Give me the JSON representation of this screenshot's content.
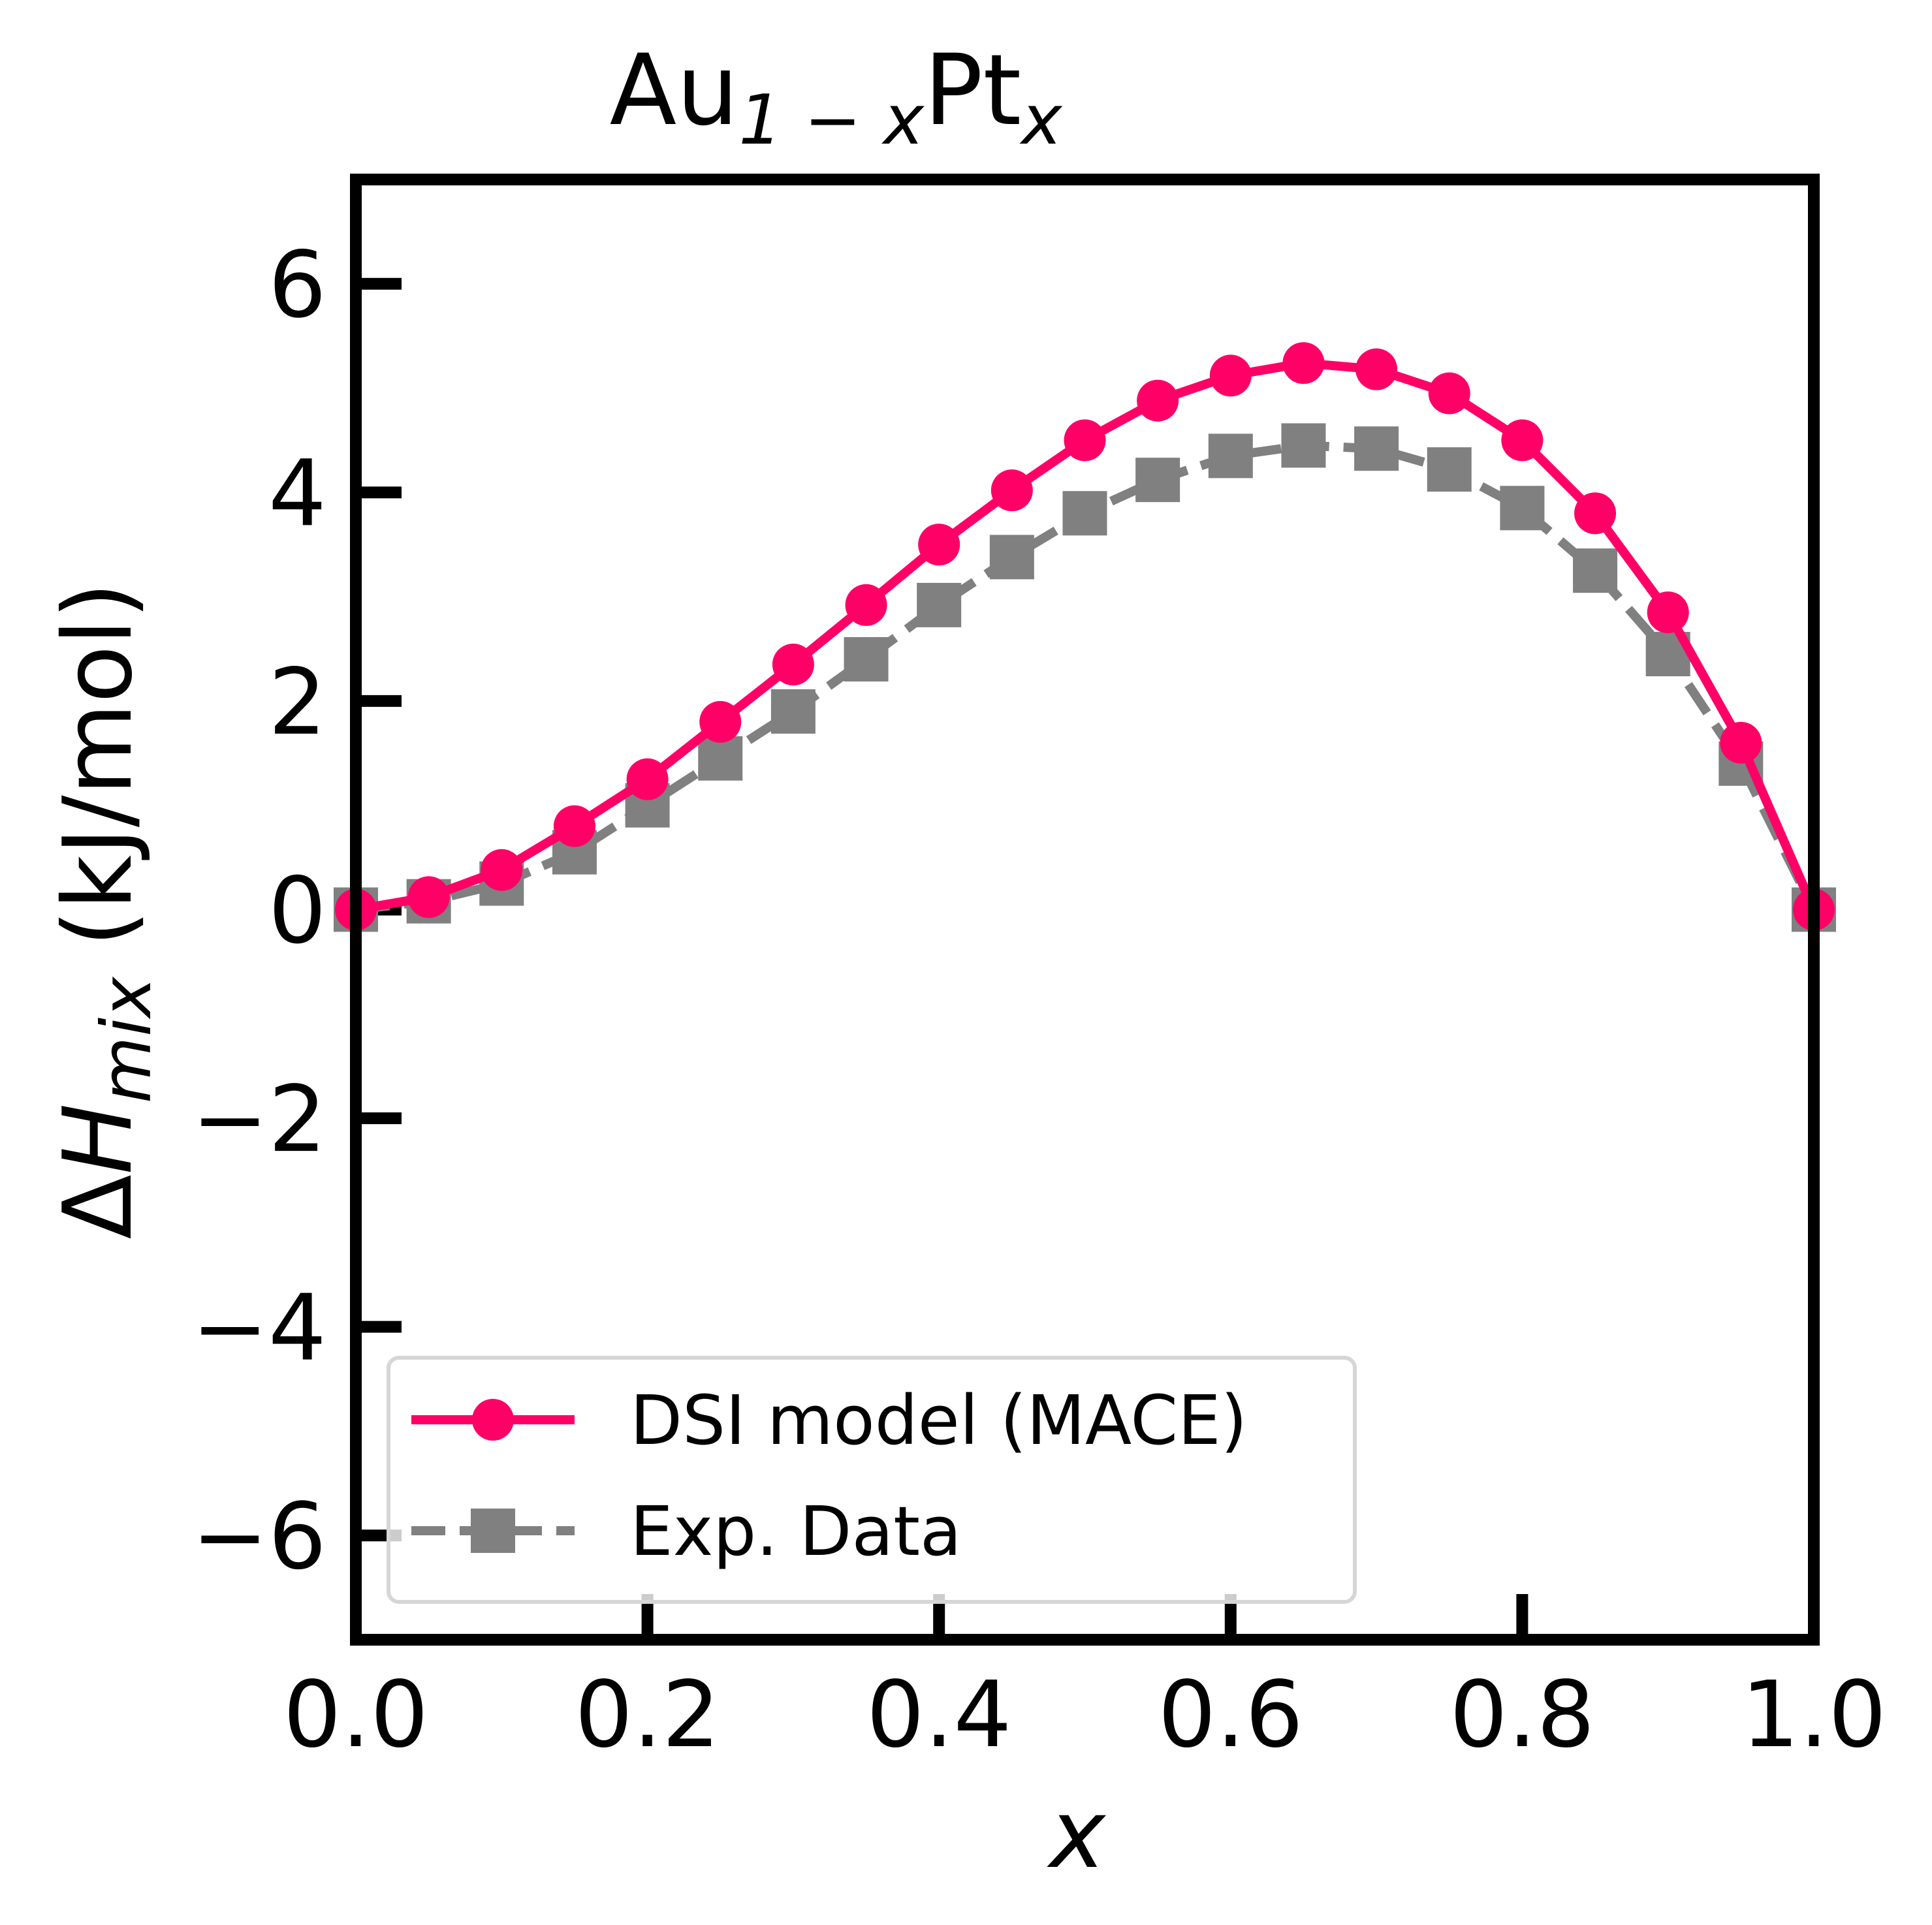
{
  "chart_data": {
    "type": "line",
    "title": {
      "base1": "Au",
      "sub1": "1 − x",
      "base2": "Pt",
      "sub2": "x"
    },
    "xlabel": "x",
    "ylabel": {
      "delta": "Δ",
      "H": "H",
      "sub": "mix",
      "units": " (kJ/mol)"
    },
    "xlim": [
      0.0,
      1.0
    ],
    "ylim": [
      -7,
      7
    ],
    "xticks": [
      0.0,
      0.2,
      0.4,
      0.6,
      0.8,
      1.0
    ],
    "xtick_labels": [
      "0.0",
      "0.2",
      "0.4",
      "0.6",
      "0.8",
      "1.0"
    ],
    "yticks": [
      -6,
      -4,
      -2,
      0,
      2,
      4,
      6
    ],
    "ytick_labels": [
      "−6",
      "−4",
      "−2",
      "0",
      "2",
      "4",
      "6"
    ],
    "grid": false,
    "legend_position": "lower-left",
    "series": [
      {
        "name": "DSI model (MACE)",
        "color": "#ff0066",
        "marker": "circle",
        "linestyle": "solid",
        "x": [
          0.0,
          0.05,
          0.1,
          0.15,
          0.2,
          0.25,
          0.3,
          0.35,
          0.4,
          0.45,
          0.5,
          0.55,
          0.6,
          0.65,
          0.7,
          0.75,
          0.8,
          0.85,
          0.9,
          0.95,
          1.0
        ],
        "y": [
          0.0,
          0.12,
          0.38,
          0.8,
          1.25,
          1.8,
          2.35,
          2.92,
          3.5,
          4.02,
          4.5,
          4.88,
          5.12,
          5.24,
          5.18,
          4.95,
          4.5,
          3.8,
          2.85,
          1.6,
          0.0
        ]
      },
      {
        "name": "Exp. Data",
        "color": "#808080",
        "marker": "square",
        "linestyle": "dashed",
        "x": [
          0.0,
          0.05,
          0.1,
          0.15,
          0.2,
          0.25,
          0.3,
          0.35,
          0.4,
          0.45,
          0.5,
          0.55,
          0.6,
          0.65,
          0.7,
          0.75,
          0.8,
          0.85,
          0.9,
          0.95,
          1.0
        ],
        "y": [
          0.0,
          0.08,
          0.25,
          0.55,
          1.0,
          1.45,
          1.9,
          2.4,
          2.92,
          3.38,
          3.8,
          4.12,
          4.35,
          4.45,
          4.42,
          4.22,
          3.85,
          3.25,
          2.45,
          1.4,
          0.0
        ]
      }
    ]
  }
}
